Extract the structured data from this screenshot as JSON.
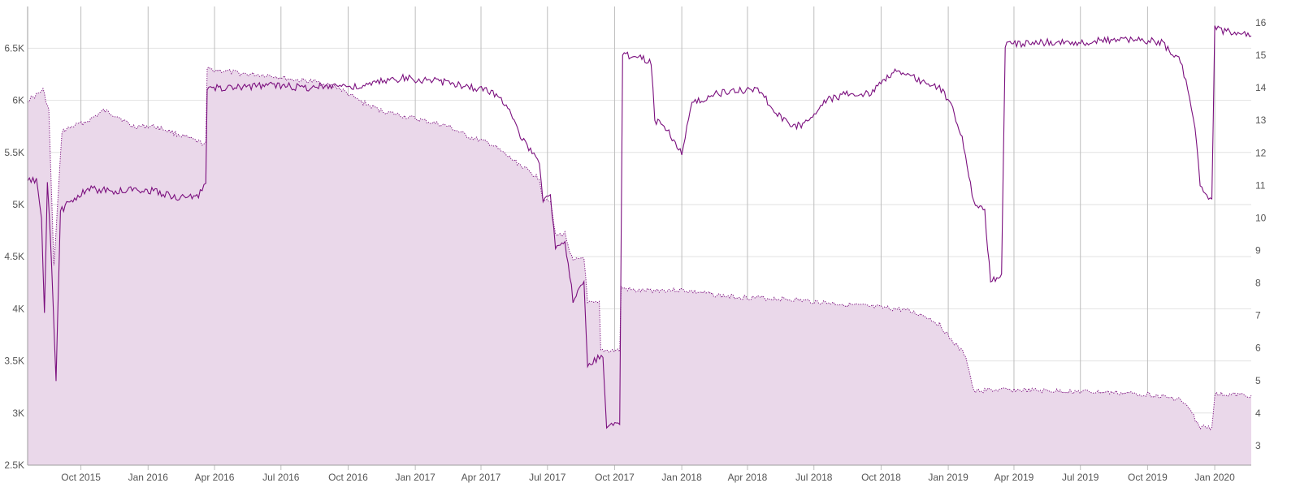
{
  "chart_data": {
    "type": "line",
    "title": "",
    "colors": {
      "line": "#7b0f7e",
      "area_fill": "#ead8ea",
      "grid_h": "#e2e2e2",
      "grid_v": "#bdbdbd",
      "axis": "#9e9e9e",
      "tick_text": "#555555"
    },
    "x_axis": {
      "type": "date",
      "range": [
        "2015-07-20",
        "2020-02-20"
      ],
      "tick_labels": [
        {
          "date": "2015-10-01",
          "label": "Oct 2015"
        },
        {
          "date": "2016-01-01",
          "label": "Jan 2016"
        },
        {
          "date": "2016-04-01",
          "label": "Apr 2016"
        },
        {
          "date": "2016-07-01",
          "label": "Jul 2016"
        },
        {
          "date": "2016-10-01",
          "label": "Oct 2016"
        },
        {
          "date": "2017-01-01",
          "label": "Jan 2017"
        },
        {
          "date": "2017-04-01",
          "label": "Apr 2017"
        },
        {
          "date": "2017-07-01",
          "label": "Jul 2017"
        },
        {
          "date": "2017-10-01",
          "label": "Oct 2017"
        },
        {
          "date": "2018-01-01",
          "label": "Jan 2018"
        },
        {
          "date": "2018-04-01",
          "label": "Apr 2018"
        },
        {
          "date": "2018-07-01",
          "label": "Jul 2018"
        },
        {
          "date": "2018-10-01",
          "label": "Oct 2018"
        },
        {
          "date": "2019-01-01",
          "label": "Jan 2019"
        },
        {
          "date": "2019-04-01",
          "label": "Apr 2019"
        },
        {
          "date": "2019-07-01",
          "label": "Jul 2019"
        },
        {
          "date": "2019-10-01",
          "label": "Oct 2019"
        },
        {
          "date": "2020-01-01",
          "label": "Jan 2020"
        }
      ]
    },
    "y_left": {
      "min": 2500,
      "max": 6900,
      "ticks": [
        {
          "value": 2500,
          "label": "2.5K"
        },
        {
          "value": 3000,
          "label": "3K"
        },
        {
          "value": 3500,
          "label": "3.5K"
        },
        {
          "value": 4000,
          "label": "4K"
        },
        {
          "value": 4500,
          "label": "4.5K"
        },
        {
          "value": 5000,
          "label": "5K"
        },
        {
          "value": 5500,
          "label": "5.5K"
        },
        {
          "value": 6000,
          "label": "6K"
        },
        {
          "value": 6500,
          "label": "6.5K"
        }
      ]
    },
    "y_right": {
      "min": 2.4,
      "max": 16.5,
      "ticks": [
        {
          "value": 3,
          "label": "3"
        },
        {
          "value": 4,
          "label": "4"
        },
        {
          "value": 5,
          "label": "5"
        },
        {
          "value": 6,
          "label": "6"
        },
        {
          "value": 7,
          "label": "7"
        },
        {
          "value": 8,
          "label": "8"
        },
        {
          "value": 9,
          "label": "9"
        },
        {
          "value": 10,
          "label": "10"
        },
        {
          "value": 11,
          "label": "11"
        },
        {
          "value": 12,
          "label": "12"
        },
        {
          "value": 13,
          "label": "13"
        },
        {
          "value": 14,
          "label": "14"
        },
        {
          "value": 15,
          "label": "15"
        },
        {
          "value": 16,
          "label": "16"
        }
      ]
    },
    "series": [
      {
        "style": "dotted-area",
        "axis": "left",
        "points": [
          [
            "2015-07-20",
            6000
          ],
          [
            "2015-08-01",
            6050
          ],
          [
            "2015-08-10",
            6100
          ],
          [
            "2015-08-18",
            5900
          ],
          [
            "2015-08-25",
            4400
          ],
          [
            "2015-09-05",
            5700
          ],
          [
            "2015-09-20",
            5750
          ],
          [
            "2015-10-10",
            5800
          ],
          [
            "2015-11-01",
            5900
          ],
          [
            "2015-11-20",
            5850
          ],
          [
            "2015-12-10",
            5750
          ],
          [
            "2016-01-10",
            5750
          ],
          [
            "2016-02-01",
            5700
          ],
          [
            "2016-02-20",
            5650
          ],
          [
            "2016-03-10",
            5600
          ],
          [
            "2016-03-20",
            5580
          ],
          [
            "2016-03-22",
            6300
          ],
          [
            "2016-04-15",
            6280
          ],
          [
            "2016-05-15",
            6250
          ],
          [
            "2016-06-15",
            6240
          ],
          [
            "2016-07-15",
            6200
          ],
          [
            "2016-08-15",
            6180
          ],
          [
            "2016-09-15",
            6130
          ],
          [
            "2016-10-15",
            6000
          ],
          [
            "2016-11-15",
            5900
          ],
          [
            "2016-12-15",
            5850
          ],
          [
            "2017-01-15",
            5800
          ],
          [
            "2017-02-15",
            5750
          ],
          [
            "2017-03-15",
            5650
          ],
          [
            "2017-04-15",
            5580
          ],
          [
            "2017-05-10",
            5450
          ],
          [
            "2017-05-25",
            5380
          ],
          [
            "2017-06-05",
            5320
          ],
          [
            "2017-06-20",
            5250
          ],
          [
            "2017-06-25",
            5050
          ],
          [
            "2017-07-05",
            5050
          ],
          [
            "2017-07-12",
            4700
          ],
          [
            "2017-07-25",
            4720
          ],
          [
            "2017-08-05",
            4450
          ],
          [
            "2017-08-20",
            4500
          ],
          [
            "2017-08-25",
            4050
          ],
          [
            "2017-09-10",
            4050
          ],
          [
            "2017-09-12",
            3600
          ],
          [
            "2017-09-28",
            3600
          ],
          [
            "2017-10-08",
            3600
          ],
          [
            "2017-10-10",
            4200
          ],
          [
            "2017-11-01",
            4170
          ],
          [
            "2017-12-01",
            4180
          ],
          [
            "2018-01-01",
            4180
          ],
          [
            "2018-02-01",
            4150
          ],
          [
            "2018-03-01",
            4120
          ],
          [
            "2018-04-01",
            4110
          ],
          [
            "2018-05-01",
            4100
          ],
          [
            "2018-06-01",
            4090
          ],
          [
            "2018-07-01",
            4070
          ],
          [
            "2018-08-01",
            4050
          ],
          [
            "2018-09-01",
            4030
          ],
          [
            "2018-10-01",
            4010
          ],
          [
            "2018-11-01",
            3990
          ],
          [
            "2018-12-01",
            3930
          ],
          [
            "2018-12-20",
            3850
          ],
          [
            "2019-01-05",
            3700
          ],
          [
            "2019-01-25",
            3550
          ],
          [
            "2019-02-05",
            3200
          ],
          [
            "2019-02-20",
            3220
          ],
          [
            "2019-04-01",
            3220
          ],
          [
            "2019-06-01",
            3210
          ],
          [
            "2019-08-01",
            3200
          ],
          [
            "2019-10-01",
            3180
          ],
          [
            "2019-11-15",
            3130
          ],
          [
            "2019-12-01",
            3000
          ],
          [
            "2019-12-10",
            2870
          ],
          [
            "2019-12-28",
            2860
          ],
          [
            "2020-01-01",
            3180
          ],
          [
            "2020-02-20",
            3170
          ]
        ]
      },
      {
        "style": "solid",
        "axis": "right",
        "points": [
          [
            "2015-07-20",
            11.1
          ],
          [
            "2015-08-01",
            11.2
          ],
          [
            "2015-08-08",
            10.0
          ],
          [
            "2015-08-12",
            7.0
          ],
          [
            "2015-08-16",
            11.0
          ],
          [
            "2015-08-20",
            9.5
          ],
          [
            "2015-08-28",
            5.0
          ],
          [
            "2015-09-03",
            10.2
          ],
          [
            "2015-09-20",
            10.6
          ],
          [
            "2015-10-15",
            10.9
          ],
          [
            "2015-11-15",
            10.8
          ],
          [
            "2015-12-15",
            10.9
          ],
          [
            "2016-01-15",
            10.8
          ],
          [
            "2016-02-15",
            10.6
          ],
          [
            "2016-03-10",
            10.7
          ],
          [
            "2016-03-20",
            11.0
          ],
          [
            "2016-03-22",
            14.0
          ],
          [
            "2016-05-01",
            14.0
          ],
          [
            "2016-06-15",
            14.1
          ],
          [
            "2016-08-01",
            14.0
          ],
          [
            "2016-09-15",
            14.1
          ],
          [
            "2016-10-15",
            14.0
          ],
          [
            "2016-11-15",
            14.2
          ],
          [
            "2016-12-15",
            14.3
          ],
          [
            "2017-02-01",
            14.2
          ],
          [
            "2017-03-01",
            14.1
          ],
          [
            "2017-04-15",
            13.9
          ],
          [
            "2017-05-10",
            13.4
          ],
          [
            "2017-05-25",
            12.5
          ],
          [
            "2017-06-10",
            12.0
          ],
          [
            "2017-06-20",
            11.6
          ],
          [
            "2017-06-25",
            10.6
          ],
          [
            "2017-07-05",
            10.8
          ],
          [
            "2017-07-12",
            9.0
          ],
          [
            "2017-07-25",
            9.2
          ],
          [
            "2017-08-05",
            7.5
          ],
          [
            "2017-08-20",
            8.0
          ],
          [
            "2017-08-25",
            5.5
          ],
          [
            "2017-09-15",
            5.8
          ],
          [
            "2017-09-20",
            3.6
          ],
          [
            "2017-10-08",
            3.7
          ],
          [
            "2017-10-12",
            15.0
          ],
          [
            "2017-11-01",
            15.0
          ],
          [
            "2017-11-20",
            14.8
          ],
          [
            "2017-11-25",
            13.0
          ],
          [
            "2017-12-10",
            12.8
          ],
          [
            "2018-01-01",
            12.0
          ],
          [
            "2018-01-15",
            13.5
          ],
          [
            "2018-02-15",
            13.8
          ],
          [
            "2018-03-15",
            13.9
          ],
          [
            "2018-04-15",
            14.0
          ],
          [
            "2018-05-10",
            13.2
          ],
          [
            "2018-06-01",
            12.8
          ],
          [
            "2018-06-20",
            12.9
          ],
          [
            "2018-07-15",
            13.6
          ],
          [
            "2018-08-15",
            13.8
          ],
          [
            "2018-09-15",
            13.8
          ],
          [
            "2018-10-01",
            14.2
          ],
          [
            "2018-10-20",
            14.5
          ],
          [
            "2018-11-15",
            14.3
          ],
          [
            "2018-12-20",
            14.0
          ],
          [
            "2019-01-05",
            13.5
          ],
          [
            "2019-01-20",
            12.5
          ],
          [
            "2019-02-05",
            10.5
          ],
          [
            "2019-02-20",
            10.2
          ],
          [
            "2019-02-28",
            8.0
          ],
          [
            "2019-03-15",
            8.3
          ],
          [
            "2019-03-20",
            15.3
          ],
          [
            "2019-05-01",
            15.4
          ],
          [
            "2019-07-01",
            15.4
          ],
          [
            "2019-09-01",
            15.5
          ],
          [
            "2019-10-20",
            15.4
          ],
          [
            "2019-11-15",
            14.8
          ],
          [
            "2019-11-25",
            14.0
          ],
          [
            "2019-12-05",
            12.8
          ],
          [
            "2019-12-12",
            11.0
          ],
          [
            "2019-12-28",
            10.5
          ],
          [
            "2020-01-01",
            15.8
          ],
          [
            "2020-02-20",
            15.6
          ]
        ]
      }
    ]
  }
}
